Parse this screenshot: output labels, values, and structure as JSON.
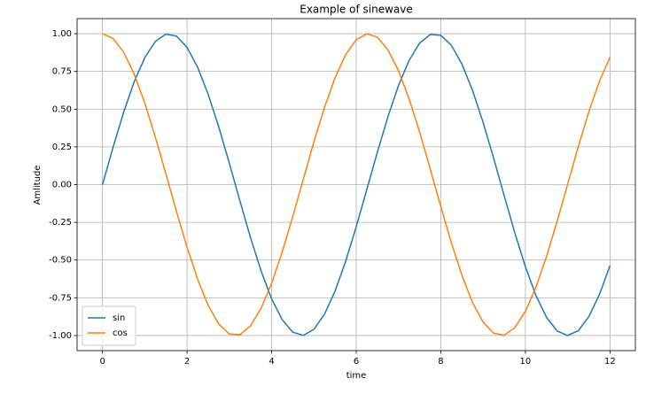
{
  "chart_data": {
    "type": "line",
    "title": "Example of sinewave",
    "x_label": "time",
    "y_label": "Amlitude",
    "x": [
      0,
      0.25,
      0.5,
      0.75,
      1,
      1.25,
      1.5,
      1.75,
      2,
      2.25,
      2.5,
      2.75,
      3,
      3.25,
      3.5,
      3.75,
      4,
      4.25,
      4.5,
      4.75,
      5,
      5.25,
      5.5,
      5.75,
      6,
      6.25,
      6.5,
      6.75,
      7,
      7.25,
      7.5,
      7.75,
      8,
      8.25,
      8.5,
      8.75,
      9,
      9.25,
      9.5,
      9.75,
      10,
      10.25,
      10.5,
      10.75,
      11,
      11.25,
      11.5,
      11.75,
      12
    ],
    "series": [
      {
        "name": "sin",
        "color": "#1f77b4",
        "values": [
          0,
          0.247,
          0.479,
          0.682,
          0.841,
          0.949,
          0.997,
          0.984,
          0.909,
          0.778,
          0.598,
          0.382,
          0.141,
          -0.108,
          -0.351,
          -0.572,
          -0.757,
          -0.895,
          -0.978,
          -0.999,
          -0.959,
          -0.859,
          -0.705,
          -0.508,
          -0.279,
          -0.033,
          0.215,
          0.45,
          0.657,
          0.823,
          0.938,
          0.995,
          0.989,
          0.923,
          0.798,
          0.624,
          0.412,
          0.174,
          -0.075,
          -0.32,
          -0.544,
          -0.735,
          -0.88,
          -0.97,
          -1.0,
          -0.968,
          -0.875,
          -0.729,
          -0.537
        ]
      },
      {
        "name": "cos",
        "color": "#ff7f0e",
        "values": [
          1,
          0.969,
          0.878,
          0.732,
          0.54,
          0.315,
          0.071,
          -0.178,
          -0.416,
          -0.628,
          -0.801,
          -0.924,
          -0.99,
          -0.994,
          -0.936,
          -0.82,
          -0.654,
          -0.446,
          -0.211,
          0.038,
          0.284,
          0.512,
          0.709,
          0.861,
          0.96,
          0.999,
          0.977,
          0.893,
          0.754,
          0.568,
          0.347,
          0.103,
          -0.146,
          -0.386,
          -0.602,
          -0.782,
          -0.911,
          -0.985,
          -0.997,
          -0.948,
          -0.839,
          -0.679,
          -0.476,
          -0.243,
          0.004,
          0.252,
          0.483,
          0.685,
          0.844
        ]
      }
    ],
    "xlim": [
      -0.6,
      12.6
    ],
    "ylim": [
      -1.1,
      1.1
    ],
    "xticks": [
      0,
      2,
      4,
      6,
      8,
      10,
      12
    ],
    "yticks": [
      {
        "value": -1,
        "label": "-1.00"
      },
      -0.75,
      {
        "value": -0.5,
        "label": "-0.50"
      },
      -0.25,
      {
        "value": 0,
        "label": "0.00"
      },
      0.25,
      {
        "value": 0.5,
        "label": "0.50"
      },
      0.75,
      {
        "value": 1,
        "label": "1.00"
      }
    ],
    "grid": true,
    "legend": "lower left"
  }
}
